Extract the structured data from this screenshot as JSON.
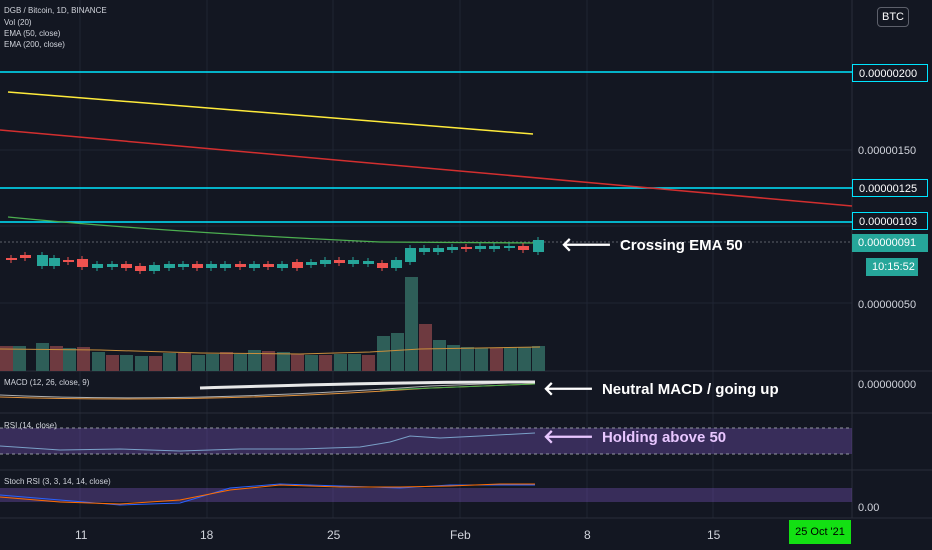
{
  "header": {
    "title": "DGB / Bitcoin, 1D, BINANCE",
    "indicators": [
      "Vol (20)",
      "EMA (50, close)",
      "EMA (200, close)"
    ],
    "currency_button": "BTC"
  },
  "price_axis": {
    "labels": {
      "p200": "0.00000200",
      "p150": "0.00000150",
      "p125": "0.00000125",
      "p103": "0.00000103",
      "p091": "0.00000091",
      "countdown": "10:15:52",
      "p050": "0.00000050",
      "macd_zero": "0.00000000",
      "stoch_zero": "0.00"
    }
  },
  "indicator_labels": {
    "macd": "MACD (12, 26, close, 9)",
    "rsi": "RSI (14, close)",
    "stoch": "Stoch RSI (3, 3, 14, 14, close)"
  },
  "annotations": {
    "ema": "Crossing EMA 50",
    "macd": "Neutral MACD / going up",
    "rsi": "Holding above 50"
  },
  "time_axis": {
    "labels": [
      "11",
      "18",
      "25",
      "Feb",
      "8",
      "15"
    ],
    "cursor_date": "25 Oct '21"
  },
  "colors": {
    "background": "#131722",
    "grid": "#1f2433",
    "up": "#26a69a",
    "down": "#ef5350",
    "level_line": "#00e5ff",
    "ema50": "#4caf50",
    "ema200": "#d32f2f",
    "yellow_line": "#ffeb3b",
    "rsi_band": "#7e57c2"
  }
}
